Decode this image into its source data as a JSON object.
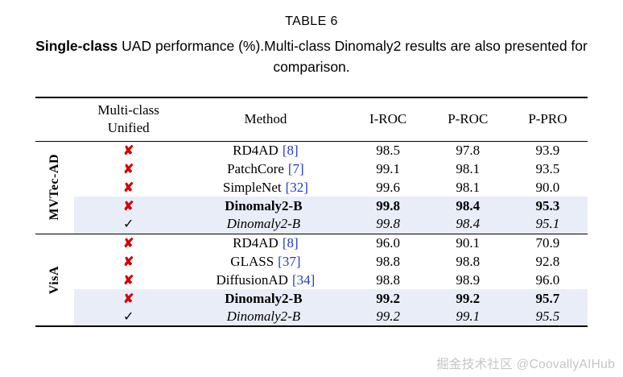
{
  "title": "TABLE 6",
  "caption": {
    "bold_part": "Single-class",
    "rest_part": " UAD performance (%).Multi-class Dinomaly2 results are also presented for comparison."
  },
  "colors": {
    "cross_mark": "#d40000",
    "citation": "#2438c8",
    "highlight_row": "#e9edf8"
  },
  "table": {
    "headers": {
      "unified": "Multi-class\nUnified",
      "method": "Method",
      "i_roc": "I-ROC",
      "p_roc": "P-ROC",
      "p_pro": "P-PRO"
    },
    "groups": [
      {
        "label": "MVTec-AD",
        "rows": [
          {
            "unified": "✘",
            "method": "RD4AD",
            "cite": "[8]",
            "i_roc": "98.5",
            "p_roc": "97.8",
            "p_pro": "93.9"
          },
          {
            "unified": "✘",
            "method": "PatchCore",
            "cite": "[7]",
            "i_roc": "99.1",
            "p_roc": "98.1",
            "p_pro": "93.5"
          },
          {
            "unified": "✘",
            "method": "SimpleNet",
            "cite": "[32]",
            "i_roc": "99.6",
            "p_roc": "98.1",
            "p_pro": "90.0"
          },
          {
            "unified": "✘",
            "method": "Dinomaly2-B",
            "i_roc": "99.8",
            "p_roc": "98.4",
            "p_pro": "95.3"
          },
          {
            "unified": "✓",
            "method": "Dinomaly2-B",
            "i_roc": "99.8",
            "p_roc": "98.4",
            "p_pro": "95.1"
          }
        ]
      },
      {
        "label": "VisA",
        "rows": [
          {
            "unified": "✘",
            "method": "RD4AD",
            "cite": "[8]",
            "i_roc": "96.0",
            "p_roc": "90.1",
            "p_pro": "70.9"
          },
          {
            "unified": "✘",
            "method": "GLASS",
            "cite": "[37]",
            "i_roc": "98.8",
            "p_roc": "98.8",
            "p_pro": "92.8"
          },
          {
            "unified": "✘",
            "method": "DiffusionAD",
            "cite": "[34]",
            "i_roc": "98.8",
            "p_roc": "98.9",
            "p_pro": "96.0"
          },
          {
            "unified": "✘",
            "method": "Dinomaly2-B",
            "i_roc": "99.2",
            "p_roc": "99.2",
            "p_pro": "95.7"
          },
          {
            "unified": "✓",
            "method": "Dinomaly2-B",
            "i_roc": "99.2",
            "p_roc": "99.1",
            "p_pro": "95.5"
          }
        ]
      }
    ]
  },
  "watermark": {
    "text": "掘金技术社区 @CoovallyAIHub"
  }
}
